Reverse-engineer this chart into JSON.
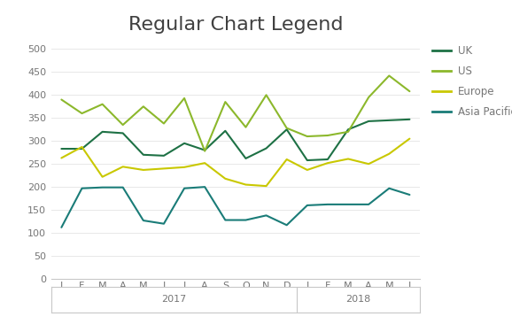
{
  "title": "Regular Chart Legend",
  "title_fontsize": 16,
  "series": {
    "UK": {
      "color": "#1e7145",
      "values": [
        283,
        283,
        320,
        317,
        270,
        268,
        295,
        280,
        322,
        262,
        284,
        325,
        258,
        260,
        325,
        343,
        345,
        347
      ]
    },
    "US": {
      "color": "#8cb82c",
      "values": [
        390,
        360,
        380,
        335,
        375,
        338,
        393,
        278,
        385,
        330,
        400,
        328,
        310,
        312,
        320,
        395,
        442,
        408
      ]
    },
    "Europe": {
      "color": "#c9c800",
      "values": [
        263,
        287,
        222,
        244,
        237,
        240,
        243,
        252,
        218,
        205,
        202,
        260,
        237,
        252,
        261,
        250,
        272,
        305
      ]
    },
    "Asia Pacific": {
      "color": "#1a7c78",
      "values": [
        112,
        197,
        199,
        199,
        127,
        120,
        197,
        200,
        128,
        128,
        138,
        117,
        160,
        162,
        162,
        162,
        197,
        183
      ]
    }
  },
  "legend_order": [
    "UK",
    "US",
    "Europe",
    "Asia Pacific"
  ],
  "x_labels": [
    "J",
    "F",
    "M",
    "A",
    "M",
    "J",
    "J",
    "A",
    "S",
    "O",
    "N",
    "D",
    "J",
    "F",
    "M",
    "A",
    "M",
    "J"
  ],
  "year_2017_range": [
    0,
    11
  ],
  "year_2018_range": [
    12,
    17
  ],
  "ylim": [
    0,
    520
  ],
  "yticks": [
    0,
    50,
    100,
    150,
    200,
    250,
    300,
    350,
    400,
    450,
    500
  ],
  "background_color": "#ffffff",
  "axis_color": "#c8c8c8",
  "tick_label_color": "#767676",
  "grid_color": "#e8e8e8"
}
